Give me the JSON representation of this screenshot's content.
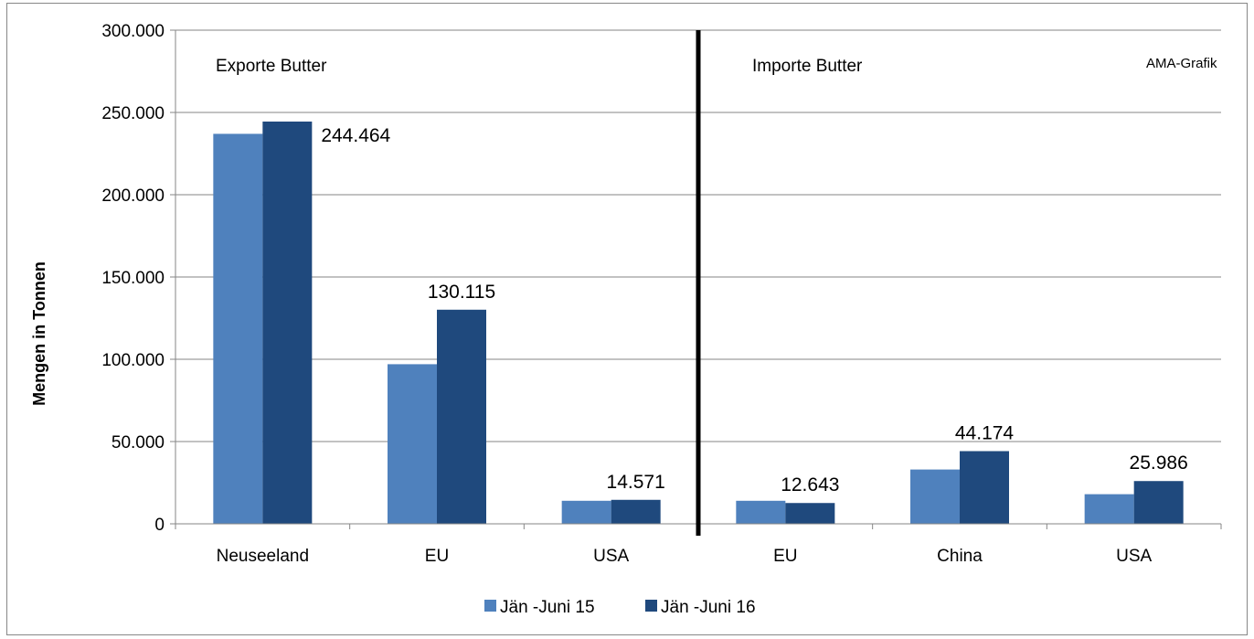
{
  "chart_data": {
    "type": "bar",
    "title": "",
    "xlabel": "",
    "ylabel": "Mengen in Tonnen",
    "ylim": [
      0,
      300000
    ],
    "yticks": [
      0,
      50000,
      100000,
      150000,
      200000,
      250000,
      300000
    ],
    "ytick_labels": [
      "0",
      "50.000",
      "100.000",
      "150.000",
      "200.000",
      "250.000",
      "300.000"
    ],
    "grid": true,
    "legend_position": "bottom",
    "categories": [
      "Neuseeland",
      "EU",
      "USA",
      "EU",
      "China",
      "USA"
    ],
    "panels": [
      {
        "label": "Exporte Butter",
        "categories": [
          0,
          1,
          2
        ]
      },
      {
        "label": "Importe Butter",
        "categories": [
          3,
          4,
          5
        ]
      }
    ],
    "annotation": "AMA-Grafik",
    "series": [
      {
        "name": "Jän -Juni 15",
        "color": "#4F81BD",
        "values": [
          237000,
          97000,
          14000,
          14000,
          33000,
          18000
        ]
      },
      {
        "name": "Jän -Juni 16",
        "color": "#1F497D",
        "values": [
          244464,
          130115,
          14571,
          12643,
          44174,
          25986
        ]
      }
    ],
    "data_labels": [
      "244.464",
      "130.115",
      "14.571",
      "12.643",
      "44.174",
      "25.986"
    ]
  }
}
